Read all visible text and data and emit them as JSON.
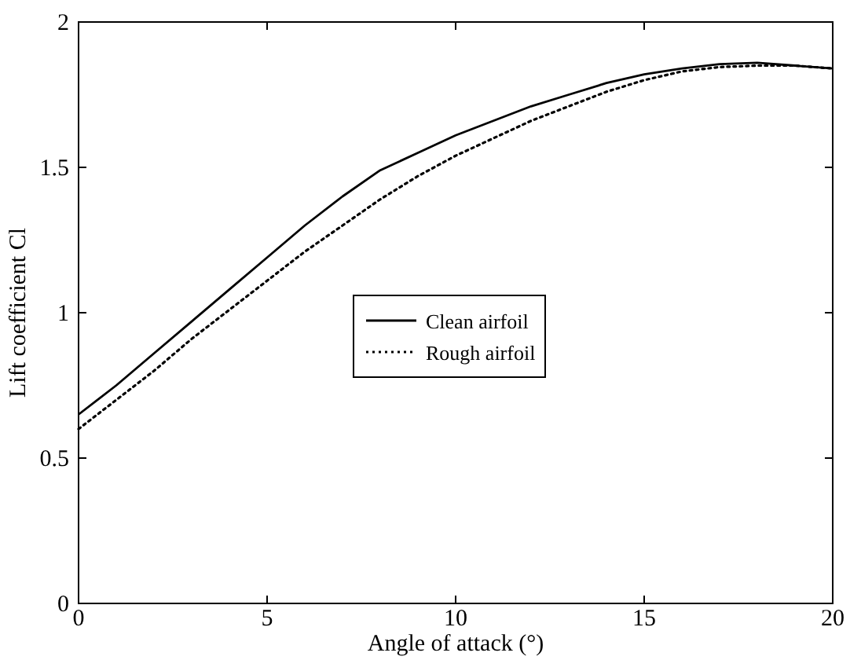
{
  "chart_data": {
    "type": "line",
    "xlabel": "Angle of attack (°)",
    "ylabel": "Lift coefficient Cl",
    "x": [
      0,
      1,
      2,
      3,
      4,
      5,
      6,
      7,
      8,
      9,
      10,
      11,
      12,
      13,
      14,
      15,
      16,
      17,
      18,
      19,
      20
    ],
    "xlim": [
      0,
      20
    ],
    "xticks": [
      0,
      5,
      10,
      15,
      20
    ],
    "ylim": [
      0,
      2
    ],
    "yticks": [
      0,
      0.5,
      1,
      1.5,
      2
    ],
    "grid": false,
    "legend": "center",
    "marker": "none",
    "series": [
      {
        "name": "Clean airfoil",
        "color": "#000000",
        "line_style": "solid",
        "values": [
          0.65,
          0.75,
          0.86,
          0.97,
          1.08,
          1.19,
          1.3,
          1.4,
          1.49,
          1.55,
          1.61,
          1.66,
          1.71,
          1.75,
          1.79,
          1.82,
          1.84,
          1.855,
          1.86,
          1.85,
          1.84
        ]
      },
      {
        "name": "Rough airfoil",
        "color": "#000000",
        "line_style": "dotted",
        "values": [
          0.6,
          0.7,
          0.8,
          0.91,
          1.01,
          1.11,
          1.21,
          1.3,
          1.39,
          1.47,
          1.54,
          1.6,
          1.66,
          1.71,
          1.76,
          1.8,
          1.83,
          1.845,
          1.85,
          1.85,
          1.84
        ]
      }
    ]
  }
}
